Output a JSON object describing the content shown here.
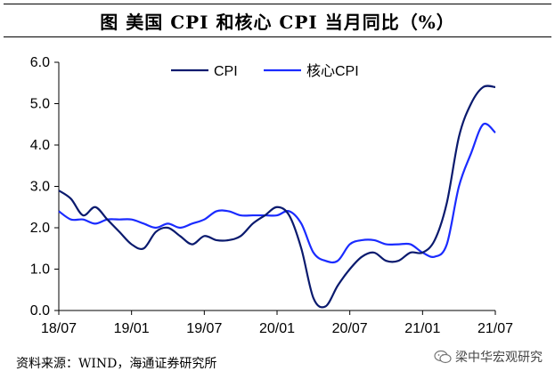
{
  "title": "图    美国 CPI 和核心 CPI 当月同比（%）",
  "source": "资料来源：WIND，海通证券研究所",
  "watermark": "梁中华宏观研究",
  "colors": {
    "cpi": "#0a1a6e",
    "core": "#1a2bff",
    "axis": "#000000"
  },
  "chart_data": {
    "type": "line",
    "title": "美国 CPI 和核心 CPI 当月同比（%）",
    "xlabel": "",
    "ylabel": "",
    "x": [
      "2018-07",
      "2018-08",
      "2018-09",
      "2018-10",
      "2018-11",
      "2018-12",
      "2019-01",
      "2019-02",
      "2019-03",
      "2019-04",
      "2019-05",
      "2019-06",
      "2019-07",
      "2019-08",
      "2019-09",
      "2019-10",
      "2019-11",
      "2019-12",
      "2020-01",
      "2020-02",
      "2020-03",
      "2020-04",
      "2020-05",
      "2020-06",
      "2020-07",
      "2020-08",
      "2020-09",
      "2020-10",
      "2020-11",
      "2020-12",
      "2021-01",
      "2021-02",
      "2021-03",
      "2021-04",
      "2021-05",
      "2021-06",
      "2021-07"
    ],
    "xticks": [
      "18/07",
      "19/01",
      "19/07",
      "20/01",
      "20/07",
      "21/01",
      "21/07"
    ],
    "ylim": [
      0.0,
      6.0
    ],
    "yticks": [
      "0.0",
      "1.0",
      "2.0",
      "3.0",
      "4.0",
      "5.0",
      "6.0"
    ],
    "legend_position": "top-center",
    "series": [
      {
        "name": "CPI",
        "color": "#0a1a6e",
        "values": [
          2.9,
          2.7,
          2.3,
          2.5,
          2.2,
          1.9,
          1.6,
          1.5,
          1.9,
          2.0,
          1.8,
          1.6,
          1.8,
          1.7,
          1.7,
          1.8,
          2.1,
          2.3,
          2.5,
          2.3,
          1.5,
          0.3,
          0.1,
          0.6,
          1.0,
          1.3,
          1.4,
          1.2,
          1.2,
          1.4,
          1.4,
          1.7,
          2.6,
          4.2,
          5.0,
          5.4,
          5.4
        ]
      },
      {
        "name": "核心CPI",
        "color": "#1a2bff",
        "values": [
          2.4,
          2.2,
          2.2,
          2.1,
          2.2,
          2.2,
          2.2,
          2.1,
          2.0,
          2.1,
          2.0,
          2.1,
          2.2,
          2.4,
          2.4,
          2.3,
          2.3,
          2.3,
          2.3,
          2.4,
          2.1,
          1.4,
          1.2,
          1.2,
          1.6,
          1.7,
          1.7,
          1.6,
          1.6,
          1.6,
          1.4,
          1.3,
          1.6,
          3.0,
          3.8,
          4.5,
          4.3
        ]
      }
    ]
  }
}
